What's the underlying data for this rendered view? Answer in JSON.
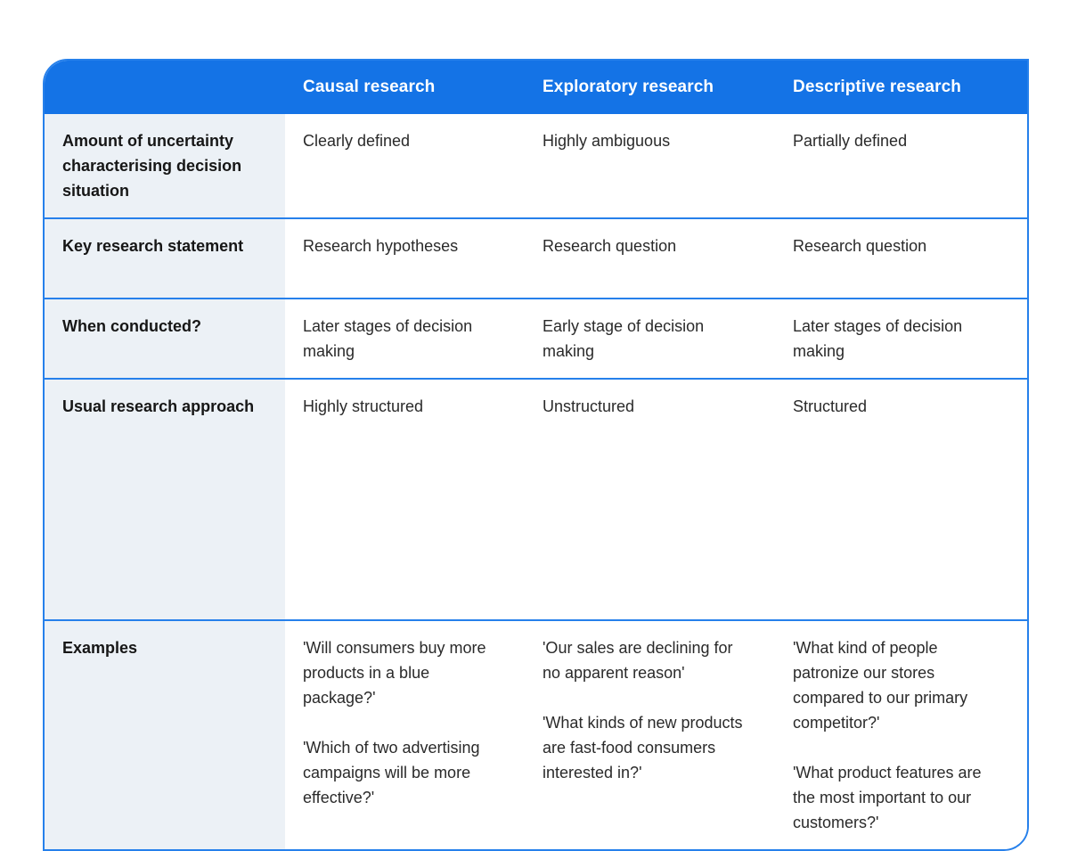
{
  "table": {
    "columns": [
      "",
      "Causal research",
      "Exploratory research",
      "Descriptive research"
    ],
    "rows": [
      {
        "label": "Amount of uncertainty characterising decision situation",
        "cells": [
          "Clearly defined",
          "Highly ambiguous",
          "Partially defined"
        ]
      },
      {
        "label": "Key research statement",
        "cells": [
          "Research hypotheses",
          "Research question",
          "Research question"
        ]
      },
      {
        "label": "When conducted?",
        "cells": [
          "Later stages of decision making",
          "Early stage of decision making",
          "Later stages of decision making"
        ]
      },
      {
        "label": "Usual research approach",
        "cells": [
          "Highly structured",
          "Unstructured",
          "Structured"
        ]
      },
      {
        "label": "Examples",
        "cells": [
          [
            "'Will consumers buy more products in a blue package?'",
            "'Which of two advertising campaigns will be more effective?'"
          ],
          [
            "'Our sales are declining for no apparent reason'",
            "'What kinds of new products are fast-food consumers interested in?'"
          ],
          [
            "'What kind of people patronize our stores compared to our primary competitor?'",
            "'What product features are the most important to our customers?'"
          ]
        ]
      }
    ]
  },
  "colors": {
    "header_bg": "#1473e6",
    "separator": "#2680eb",
    "label_column_bg": "#ecf1f6",
    "header_text": "#ffffff",
    "body_text": "#2a2a2a"
  }
}
